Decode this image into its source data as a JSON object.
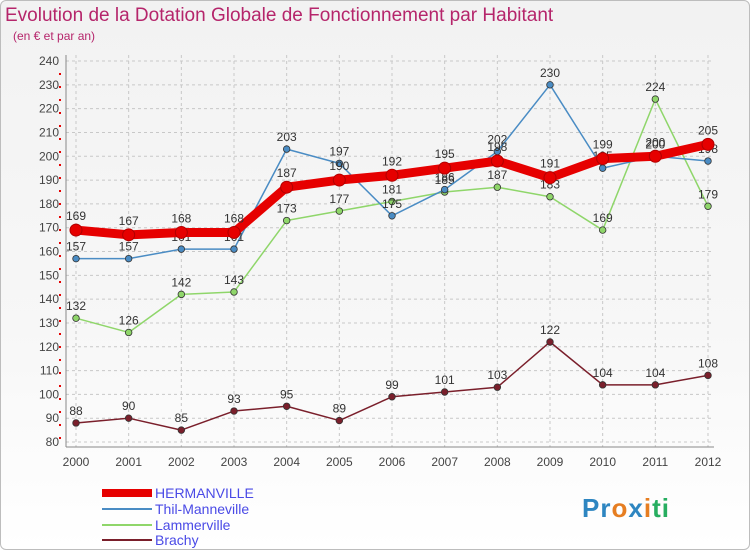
{
  "title": "Evolution de la Dotation Globale de Fonctionnement par Habitant",
  "subtitle": "(en € et par an)",
  "logo": {
    "text": "Proxiti",
    "letters": [
      "P",
      "r",
      "o",
      "x",
      "i",
      "t",
      "i"
    ],
    "colors": [
      "#2e86c1",
      "#2e86c1",
      "#e67e22",
      "#2e86c1",
      "#e67e22",
      "#27ae60",
      "#27ae60"
    ]
  },
  "chart_data": {
    "type": "line",
    "x": [
      "2000",
      "2001",
      "2002",
      "2003",
      "2004",
      "2005",
      "2006",
      "2007",
      "2008",
      "2009",
      "2010",
      "2011",
      "2012"
    ],
    "ylim": [
      80,
      240
    ],
    "yticks": [
      80,
      90,
      100,
      110,
      120,
      130,
      140,
      150,
      160,
      170,
      180,
      190,
      200,
      210,
      220,
      230,
      240
    ],
    "grid": true,
    "legend_position": "bottom-left",
    "series": [
      {
        "name": "HERMANVILLE",
        "color": "#e60000",
        "values": [
          169,
          167,
          168,
          168,
          187,
          190,
          192,
          195,
          198,
          191,
          199,
          200,
          205
        ]
      },
      {
        "name": "Thil-Manneville",
        "color": "#4a8cc4",
        "values": [
          157,
          157,
          161,
          161,
          203,
          197,
          175,
          186,
          202,
          230,
          195,
          200,
          198
        ]
      },
      {
        "name": "Lammerville",
        "color": "#8fd66a",
        "values": [
          132,
          126,
          142,
          143,
          173,
          177,
          181,
          185,
          187,
          183,
          169,
          224,
          179
        ]
      },
      {
        "name": "Brachy",
        "color": "#7a1f2b",
        "values": [
          88,
          90,
          85,
          93,
          95,
          89,
          99,
          101,
          103,
          122,
          104,
          104,
          108
        ]
      }
    ]
  }
}
